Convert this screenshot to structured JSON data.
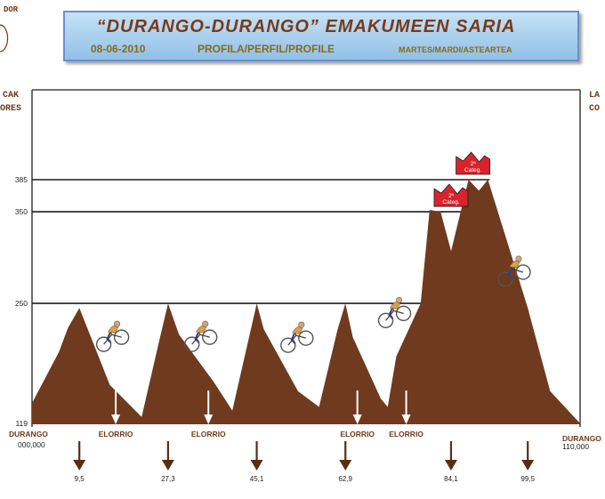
{
  "header": {
    "title": "“DURANGO-DURANGO” EMAKUMEEN SARIA",
    "date": "08-06-2010",
    "profile": "PROFILA/PERFIL/PROFILE",
    "day": "MARTES/MARDI/ASTEARTEA"
  },
  "corner": {
    "top_left": "DOR",
    "left_label_1": "CAK",
    "left_label_2": "ORES",
    "right_label_1": "LA",
    "right_label_2": "CO"
  },
  "colors": {
    "profile_fill": "#6f3a1e",
    "banner_bg": "#a9d2f1",
    "banner_border": "#6a8fd0",
    "title_text": "#7a3a1a",
    "subtitle_text": "#8a6a16",
    "category_red": "#d9232a",
    "label_text": "#6f3a1e",
    "arrow_color": "#5a2c14"
  },
  "chart_data": {
    "type": "area",
    "title": "“DURANGO-DURANGO” EMAKUMEEN SARIA",
    "xlabel": "",
    "ylabel": "",
    "xlim": [
      0,
      110
    ],
    "ylim": [
      119,
      385
    ],
    "y_ticks": [
      119,
      250,
      350,
      385
    ],
    "reference_lines": [
      250,
      350,
      385
    ],
    "profile": {
      "x": [
        0,
        5.4,
        7.2,
        9.5,
        15.6,
        22.0,
        25.4,
        27.3,
        29.5,
        36.5,
        40.2,
        45.1,
        46.5,
        53.4,
        57.6,
        61.3,
        62.9,
        64.4,
        70.0,
        71.4,
        73.1,
        78.0,
        79.8,
        82.0,
        84.1,
        87.6,
        89.7,
        91.5,
        99.5,
        104.0,
        110.0
      ],
      "y": [
        141,
        197,
        223,
        245,
        161,
        126,
        206,
        250,
        216,
        164,
        133,
        250,
        222,
        154,
        137,
        221,
        250,
        213,
        146,
        137,
        192,
        250,
        352,
        350,
        307,
        385,
        373,
        385,
        245,
        154,
        119
      ]
    },
    "start": {
      "name": "DURANGO",
      "km": "000,000"
    },
    "finish": {
      "name": "DURANGO",
      "km": "110,000"
    },
    "passages": [
      {
        "name": "ELORRIO",
        "km": 16.8
      },
      {
        "name": "ELORRIO",
        "km": 35.4
      },
      {
        "name": "ELORRIO",
        "km": 65.3
      },
      {
        "name": "ELORRIO",
        "km": 75.1
      }
    ],
    "bottom_markers": [
      {
        "km": 9.5,
        "label": "9,5"
      },
      {
        "km": 27.3,
        "label": "27,3"
      },
      {
        "km": 45.1,
        "label": "45,1"
      },
      {
        "km": 62.9,
        "label": "62,9"
      },
      {
        "km": 84.1,
        "label": "84,1"
      },
      {
        "km": 99.5,
        "label": "99,5"
      }
    ],
    "categories": [
      {
        "label": "2ª Categ.",
        "km": 84.1,
        "alt": 350
      },
      {
        "label": "2ª Categ.",
        "km": 88.5,
        "alt": 385
      }
    ],
    "riders": [
      {
        "km": 16.0,
        "alt": 215
      },
      {
        "km": 33.7,
        "alt": 215
      },
      {
        "km": 53.0,
        "alt": 214
      },
      {
        "km": 72.6,
        "alt": 241
      },
      {
        "km": 96.6,
        "alt": 286
      }
    ]
  }
}
